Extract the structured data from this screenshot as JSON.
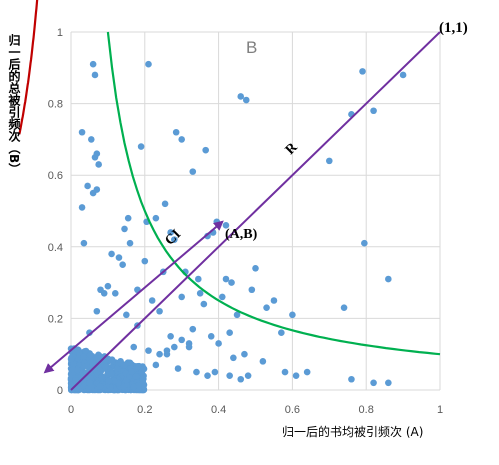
{
  "chart_data": {
    "type": "scatter",
    "title": "",
    "xlabel": "归一后的书均被引频次 (A)",
    "ylabel": "归一后的总被引频次（B）",
    "xlim": [
      0,
      1
    ],
    "ylim": [
      0,
      1
    ],
    "x_ticks": [
      "0",
      "0.2",
      "0.4",
      "0.6",
      "0.8",
      "1"
    ],
    "y_ticks": [
      "0",
      "0.2",
      "0.4",
      "0.6",
      "0.8",
      "1"
    ],
    "grid": true,
    "point_color": "#5b9bd5",
    "annotations": {
      "corner_label": "(1,1)",
      "point_label": "(A,B)",
      "r_label": "R",
      "ci_label": "CI",
      "region_label": "B"
    },
    "curves": [
      {
        "color": "#00b050",
        "function": "y = 0.1/x",
        "x_range": [
          0.1,
          1.0
        ]
      },
      {
        "color": "#c00000",
        "function": "y = -0.1/x",
        "x_range": [
          -0.14,
          -0.05
        ]
      }
    ],
    "lines": [
      {
        "color": "#7030a0",
        "from": [
          0,
          0
        ],
        "to": [
          1,
          1
        ]
      },
      {
        "color": "#7030a0",
        "from": [
          -0.07,
          0.05
        ],
        "to": [
          0.41,
          0.47
        ],
        "arrow": "both"
      }
    ],
    "series": [
      {
        "x": [
          0.06,
          0.21,
          0.065,
          0.79,
          0.9,
          0.46,
          0.475,
          0.76,
          0.82,
          0.7,
          0.03,
          0.055,
          0.065,
          0.07,
          0.075,
          0.285,
          0.3,
          0.19,
          0.255,
          0.23,
          0.365,
          0.33,
          0.045,
          0.03,
          0.06,
          0.07,
          0.035,
          0.42,
          0.395,
          0.27,
          0.205,
          0.145,
          0.155,
          0.385,
          0.37,
          0.795,
          0.86,
          0.11,
          0.13,
          0.16,
          0.14,
          0.2,
          0.28,
          0.25,
          0.31,
          0.345,
          0.42,
          0.435,
          0.5,
          0.55,
          0.09,
          0.1,
          0.08,
          0.12,
          0.18,
          0.22,
          0.3,
          0.35,
          0.41,
          0.49,
          0.53,
          0.74,
          0.07,
          0.15,
          0.24,
          0.36,
          0.45,
          0.6,
          0.64,
          0.76,
          0.82,
          0.86,
          0.05,
          0.18,
          0.27,
          0.33,
          0.38,
          0.4,
          0.43,
          0.57,
          0.58,
          0.61,
          0.17,
          0.21,
          0.26,
          0.32,
          0.44,
          0.47,
          0.52,
          0.02,
          0.04,
          0.06,
          0.1,
          0.13,
          0.16,
          0.19,
          0.23,
          0.29,
          0.34,
          0.37,
          0.39,
          0.43,
          0.46,
          0.48,
          0.3,
          0.32,
          0.28,
          0.26,
          0.24
        ],
        "y": [
          0.91,
          0.91,
          0.88,
          0.89,
          0.88,
          0.82,
          0.81,
          0.77,
          0.78,
          0.64,
          0.72,
          0.7,
          0.65,
          0.66,
          0.63,
          0.72,
          0.7,
          0.68,
          0.52,
          0.48,
          0.67,
          0.61,
          0.57,
          0.51,
          0.55,
          0.56,
          0.41,
          0.46,
          0.47,
          0.44,
          0.47,
          0.45,
          0.48,
          0.44,
          0.43,
          0.41,
          0.31,
          0.38,
          0.37,
          0.41,
          0.35,
          0.36,
          0.42,
          0.33,
          0.33,
          0.31,
          0.31,
          0.3,
          0.34,
          0.25,
          0.27,
          0.29,
          0.28,
          0.27,
          0.28,
          0.25,
          0.26,
          0.27,
          0.26,
          0.28,
          0.23,
          0.23,
          0.22,
          0.21,
          0.22,
          0.24,
          0.21,
          0.21,
          0.05,
          0.03,
          0.02,
          0.02,
          0.16,
          0.18,
          0.15,
          0.17,
          0.15,
          0.13,
          0.16,
          0.16,
          0.05,
          0.04,
          0.12,
          0.11,
          0.1,
          0.12,
          0.09,
          0.1,
          0.08,
          0.05,
          0.07,
          0.06,
          0.08,
          0.07,
          0.06,
          0.05,
          0.07,
          0.06,
          0.05,
          0.04,
          0.05,
          0.04,
          0.03,
          0.04,
          0.14,
          0.13,
          0.12,
          0.11,
          0.1
        ],
        "dense_cluster": {
          "x_range": [
            0.0,
            0.2
          ],
          "y_range": [
            0.0,
            0.12
          ]
        }
      }
    ]
  }
}
